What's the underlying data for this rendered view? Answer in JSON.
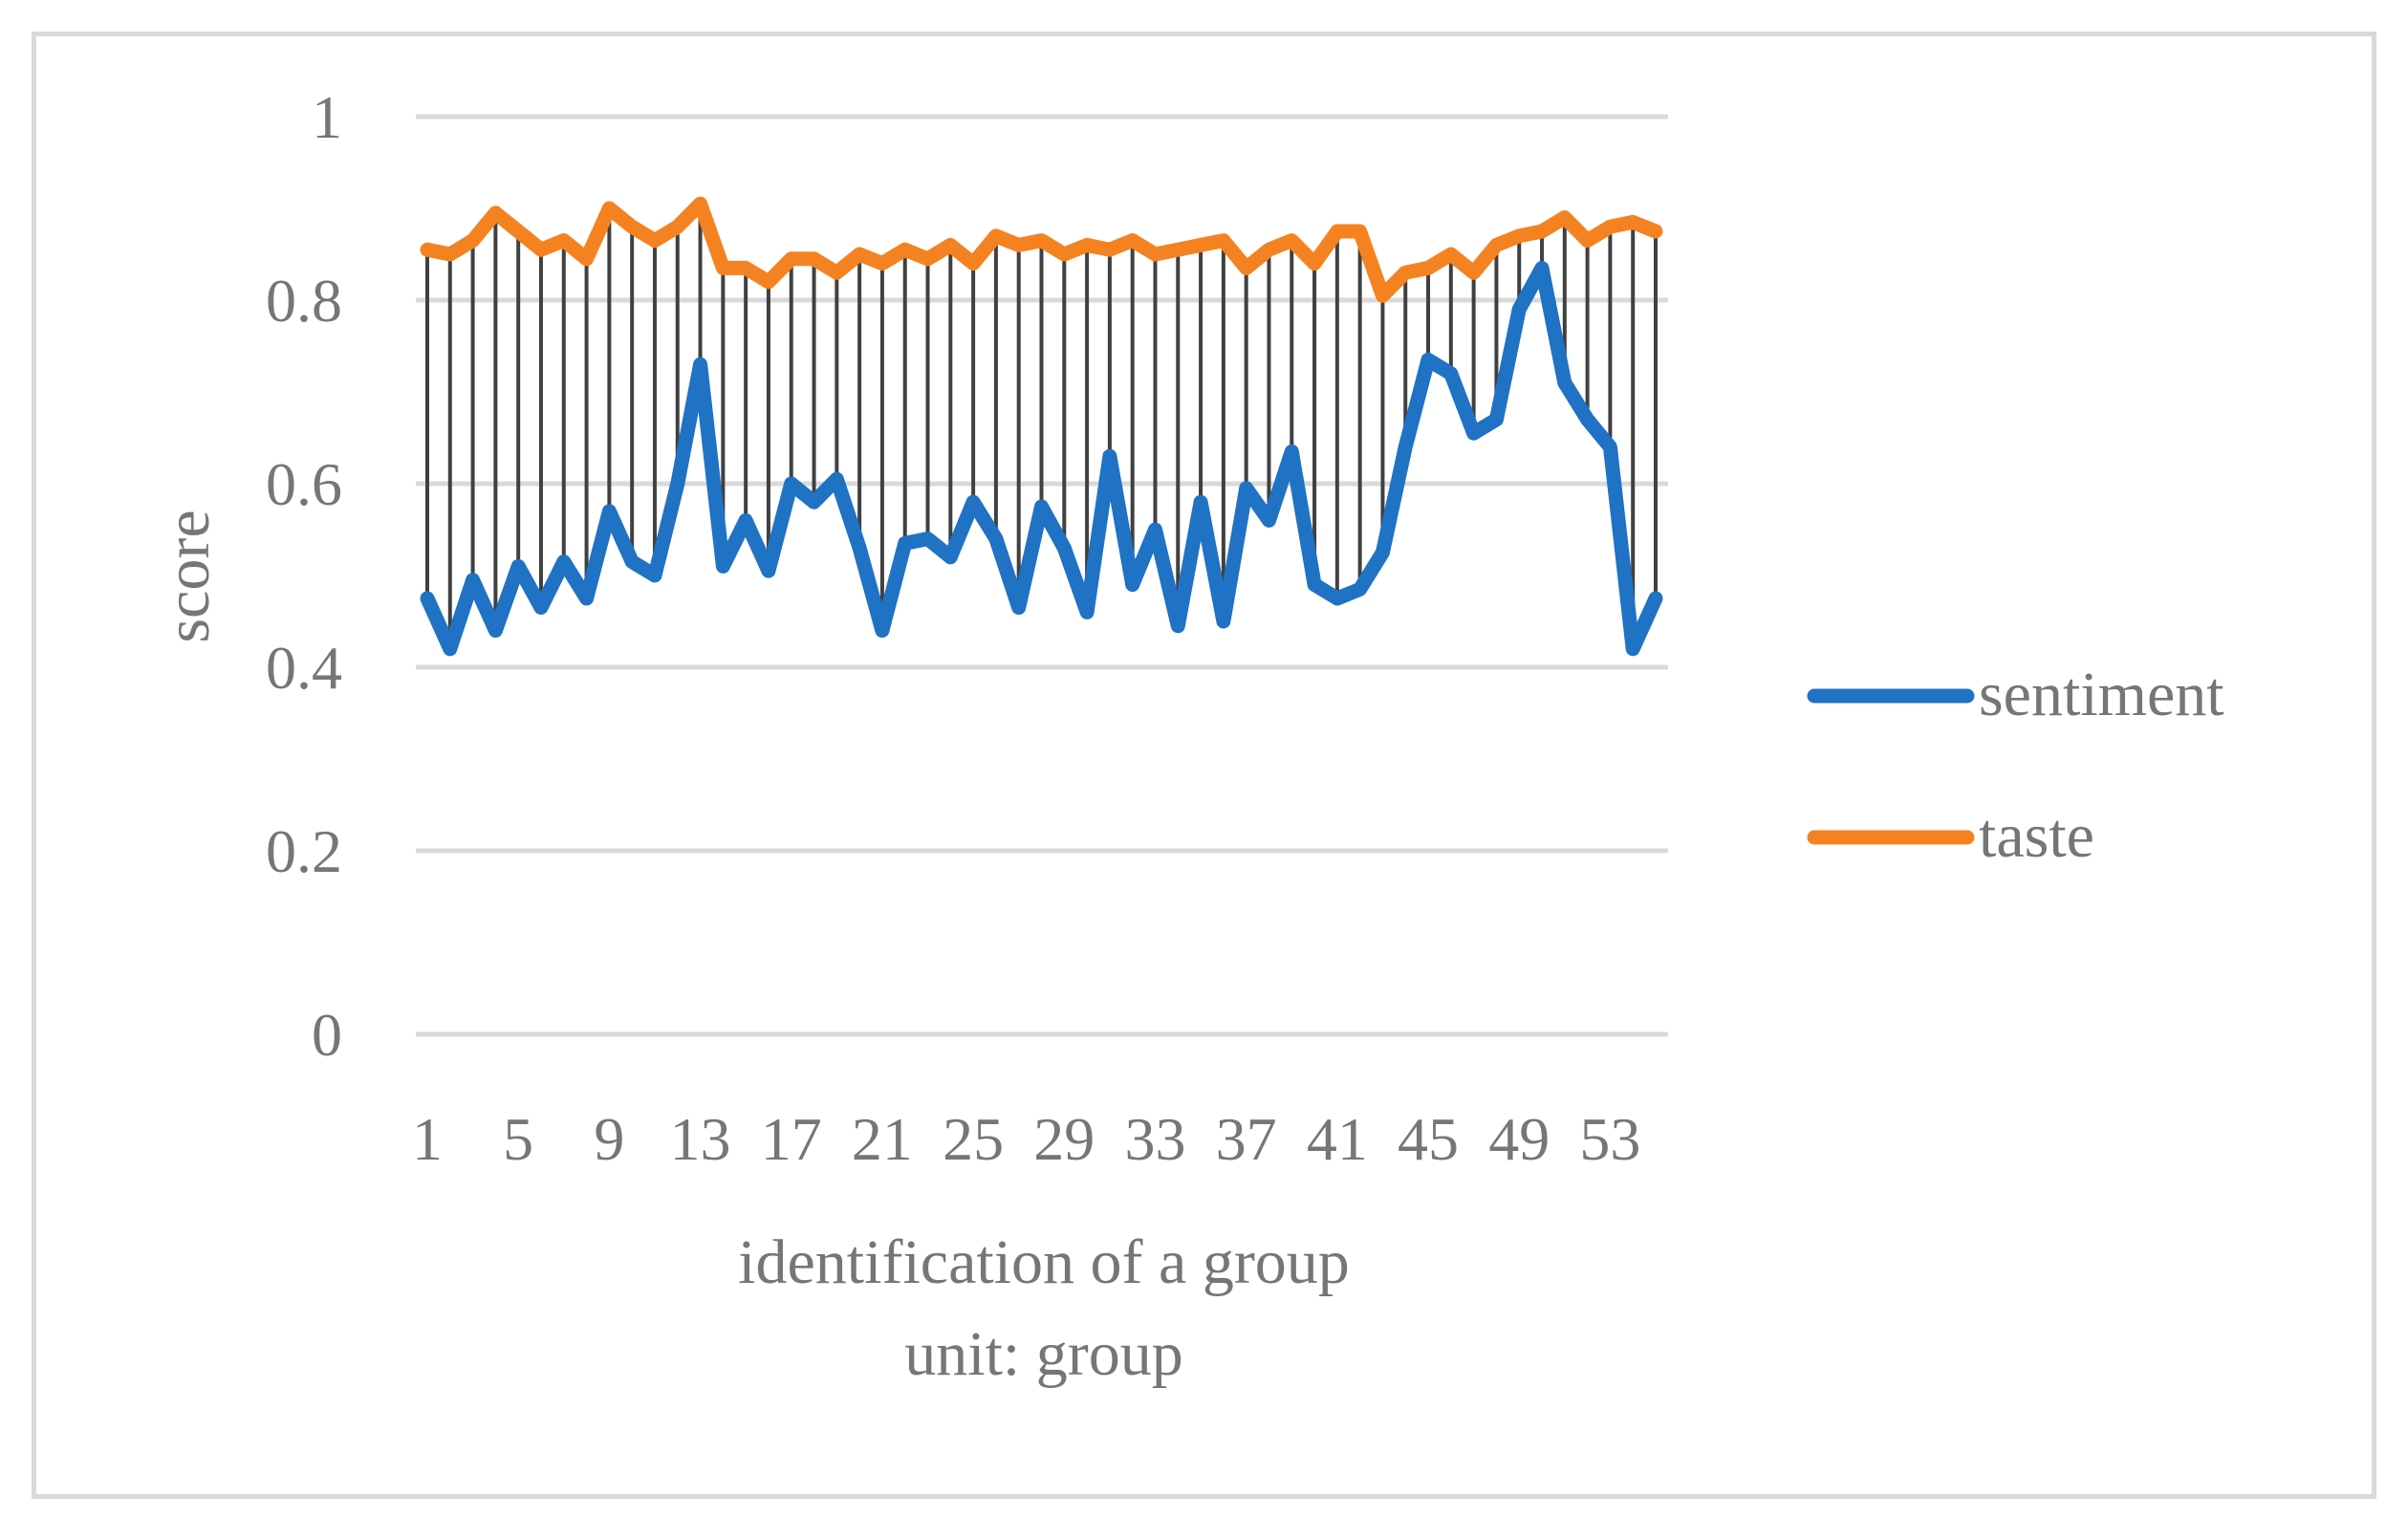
{
  "chart_data": {
    "type": "line",
    "title": "",
    "xlabel": "identification of a group",
    "xlabel_unit": "unit: group",
    "ylabel": "score",
    "ylim": [
      0,
      1
    ],
    "y_ticks": [
      0,
      0.2,
      0.4,
      0.6,
      0.8,
      1
    ],
    "y_tick_labels": [
      "0",
      "0.2",
      "0.4",
      "0.6",
      "0.8",
      "1"
    ],
    "x": [
      1,
      2,
      3,
      4,
      5,
      6,
      7,
      8,
      9,
      10,
      11,
      12,
      13,
      14,
      15,
      16,
      17,
      18,
      19,
      20,
      21,
      22,
      23,
      24,
      25,
      26,
      27,
      28,
      29,
      30,
      31,
      32,
      33,
      34,
      35,
      36,
      37,
      38,
      39,
      40,
      41,
      42,
      43,
      44,
      45,
      46,
      47,
      48,
      49,
      50,
      51,
      52,
      53,
      54,
      55
    ],
    "x_tick_labels": [
      "1",
      "5",
      "9",
      "13",
      "17",
      "21",
      "25",
      "29",
      "33",
      "37",
      "41",
      "45",
      "49",
      "53"
    ],
    "x_tick_values": [
      1,
      5,
      9,
      13,
      17,
      21,
      25,
      29,
      33,
      37,
      41,
      45,
      49,
      53
    ],
    "grid": true,
    "high_low_lines": true,
    "legend_position": "right",
    "series": [
      {
        "name": "sentiment",
        "color": "#1f72c4",
        "values": [
          0.475,
          0.42,
          0.495,
          0.44,
          0.51,
          0.465,
          0.515,
          0.475,
          0.57,
          0.515,
          0.5,
          0.6,
          0.73,
          0.51,
          0.56,
          0.505,
          0.6,
          0.58,
          0.605,
          0.53,
          0.44,
          0.535,
          0.54,
          0.52,
          0.58,
          0.54,
          0.465,
          0.575,
          0.53,
          0.46,
          0.63,
          0.49,
          0.55,
          0.445,
          0.58,
          0.45,
          0.595,
          0.56,
          0.635,
          0.49,
          0.475,
          0.485,
          0.525,
          0.64,
          0.735,
          0.72,
          0.655,
          0.67,
          0.79,
          0.835,
          0.71,
          0.67,
          0.64,
          0.42,
          0.475
        ]
      },
      {
        "name": "taste",
        "color": "#f58220",
        "values": [
          0.855,
          0.85,
          0.865,
          0.895,
          0.875,
          0.855,
          0.865,
          0.845,
          0.9,
          0.88,
          0.865,
          0.88,
          0.905,
          0.835,
          0.835,
          0.82,
          0.845,
          0.845,
          0.83,
          0.85,
          0.84,
          0.855,
          0.845,
          0.86,
          0.84,
          0.87,
          0.86,
          0.865,
          0.85,
          0.86,
          0.855,
          0.865,
          0.85,
          0.855,
          0.86,
          0.865,
          0.835,
          0.855,
          0.865,
          0.84,
          0.875,
          0.875,
          0.805,
          0.83,
          0.835,
          0.85,
          0.83,
          0.86,
          0.87,
          0.875,
          0.89,
          0.865,
          0.88,
          0.885,
          0.875
        ]
      }
    ]
  }
}
